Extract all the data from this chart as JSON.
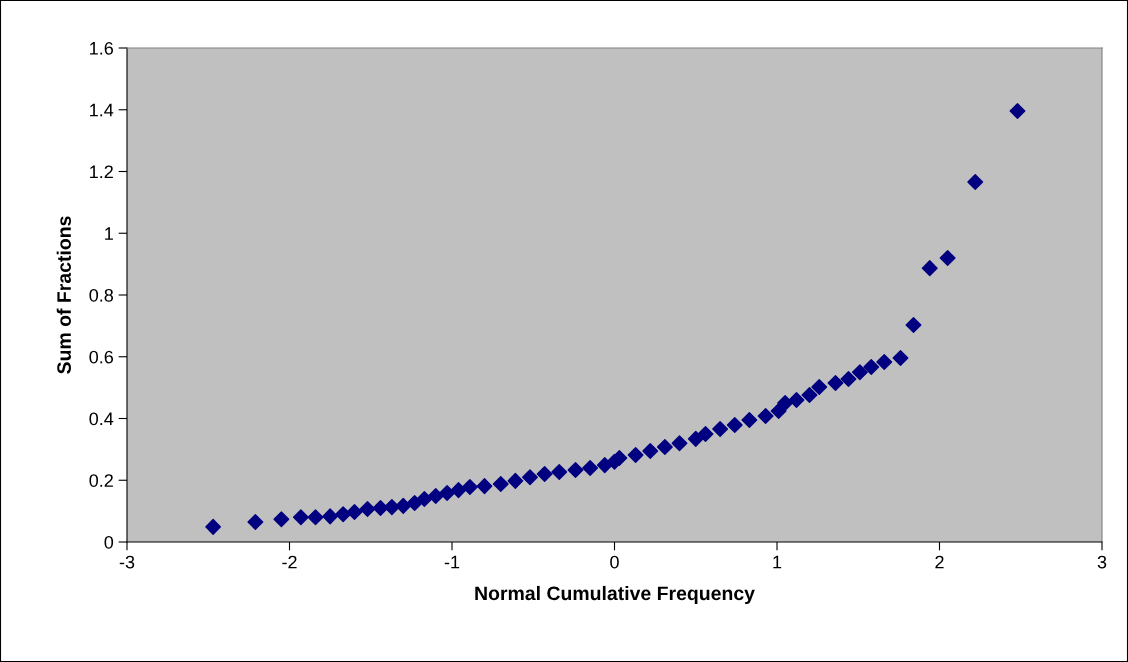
{
  "chart_data": {
    "type": "scatter",
    "xlabel": "Normal Cumulative Frequency",
    "ylabel": "Sum of Fractions",
    "xlim": [
      -3,
      3
    ],
    "xticks": [
      -3,
      -2,
      -1,
      0,
      1,
      2,
      3
    ],
    "ylim": [
      0,
      1.6
    ],
    "yticks": [
      0,
      0.2,
      0.4,
      0.6,
      0.8,
      1,
      1.2,
      1.4,
      1.6
    ],
    "grid": false,
    "legend": false,
    "marker": "diamond",
    "series": [
      {
        "color": "#000080",
        "x": [
          -2.47,
          -2.21,
          -2.05,
          -1.93,
          -1.84,
          -1.75,
          -1.67,
          -1.6,
          -1.52,
          -1.44,
          -1.37,
          -1.3,
          -1.23,
          -1.17,
          -1.1,
          -1.03,
          -0.96,
          -0.89,
          -0.8,
          -0.7,
          -0.61,
          -0.52,
          -0.43,
          -0.34,
          -0.24,
          -0.15,
          -0.06,
          0.0,
          0.03,
          0.13,
          0.22,
          0.31,
          0.4,
          0.5,
          0.56,
          0.65,
          0.74,
          0.83,
          0.93,
          1.01,
          1.05,
          1.12,
          1.2,
          1.26,
          1.36,
          1.44,
          1.51,
          1.58,
          1.66,
          1.76,
          1.84,
          1.94,
          2.05,
          2.22,
          2.48
        ],
        "values": [
          0.049,
          0.065,
          0.074,
          0.08,
          0.08,
          0.083,
          0.09,
          0.097,
          0.107,
          0.11,
          0.113,
          0.117,
          0.126,
          0.139,
          0.149,
          0.159,
          0.168,
          0.178,
          0.181,
          0.188,
          0.198,
          0.21,
          0.22,
          0.227,
          0.233,
          0.24,
          0.249,
          0.26,
          0.272,
          0.282,
          0.295,
          0.308,
          0.32,
          0.334,
          0.35,
          0.366,
          0.379,
          0.395,
          0.408,
          0.424,
          0.45,
          0.46,
          0.476,
          0.502,
          0.515,
          0.528,
          0.55,
          0.567,
          0.583,
          0.596,
          0.703,
          0.887,
          0.92,
          1.166,
          1.396
        ]
      }
    ]
  }
}
